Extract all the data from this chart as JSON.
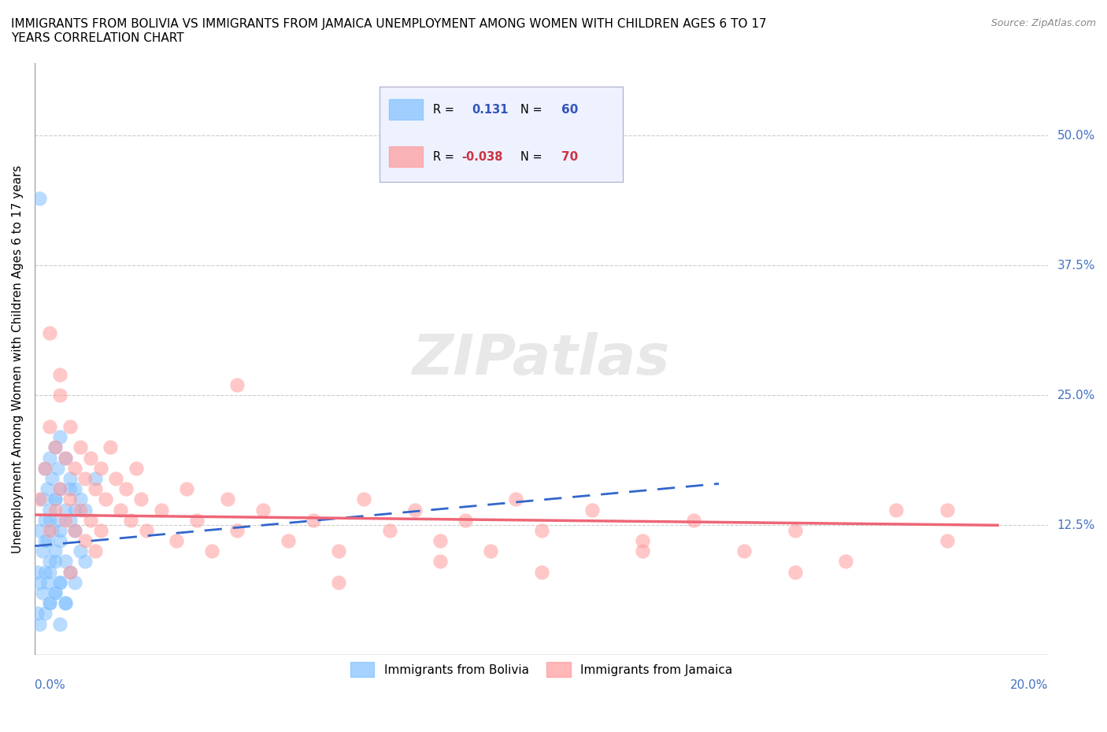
{
  "title": "IMMIGRANTS FROM BOLIVIA VS IMMIGRANTS FROM JAMAICA UNEMPLOYMENT AMONG WOMEN WITH CHILDREN AGES 6 TO 17\nYEARS CORRELATION CHART",
  "source": "Source: ZipAtlas.com",
  "ylabel": "Unemployment Among Women with Children Ages 6 to 17 years",
  "ytick_labels": [
    "50.0%",
    "37.5%",
    "25.0%",
    "12.5%"
  ],
  "ytick_values": [
    0.5,
    0.375,
    0.25,
    0.125
  ],
  "xlim": [
    0.0,
    0.2
  ],
  "ylim": [
    0.0,
    0.57
  ],
  "bolivia_color": "#7fbfff",
  "jamaica_color": "#ff9999",
  "bolivia_line_color": "#3366cc",
  "jamaica_line_color": "#ee6677",
  "bolivia_R": 0.131,
  "bolivia_N": 60,
  "jamaica_R": -0.038,
  "jamaica_N": 70,
  "legend_bottom_bolivia": "Immigrants from Bolivia",
  "legend_bottom_jamaica": "Immigrants from Jamaica",
  "bolivia_trend_x": [
    0.0,
    0.135
  ],
  "bolivia_trend_y": [
    0.105,
    0.165
  ],
  "jamaica_trend_x": [
    0.0,
    0.19
  ],
  "jamaica_trend_y": [
    0.135,
    0.125
  ],
  "watermark": "ZIPatlas",
  "bolivia_scatter_x": [
    0.0005,
    0.001,
    0.001,
    0.0015,
    0.0015,
    0.002,
    0.002,
    0.002,
    0.0025,
    0.0025,
    0.003,
    0.003,
    0.003,
    0.003,
    0.0035,
    0.0035,
    0.004,
    0.004,
    0.004,
    0.004,
    0.0045,
    0.0045,
    0.005,
    0.005,
    0.005,
    0.005,
    0.006,
    0.006,
    0.006,
    0.006,
    0.007,
    0.007,
    0.007,
    0.008,
    0.008,
    0.008,
    0.009,
    0.009,
    0.01,
    0.01,
    0.0005,
    0.001,
    0.0015,
    0.002,
    0.0025,
    0.003,
    0.003,
    0.004,
    0.004,
    0.005,
    0.005,
    0.006,
    0.001,
    0.002,
    0.003,
    0.004,
    0.005,
    0.007,
    0.008,
    0.012
  ],
  "bolivia_scatter_y": [
    0.08,
    0.12,
    0.07,
    0.15,
    0.1,
    0.18,
    0.13,
    0.08,
    0.16,
    0.11,
    0.19,
    0.14,
    0.09,
    0.05,
    0.17,
    0.12,
    0.2,
    0.15,
    0.1,
    0.06,
    0.18,
    0.13,
    0.21,
    0.16,
    0.11,
    0.07,
    0.19,
    0.14,
    0.09,
    0.05,
    0.17,
    0.13,
    0.08,
    0.16,
    0.12,
    0.07,
    0.15,
    0.1,
    0.14,
    0.09,
    0.04,
    0.03,
    0.06,
    0.04,
    0.07,
    0.05,
    0.08,
    0.06,
    0.09,
    0.07,
    0.03,
    0.05,
    0.44,
    0.11,
    0.13,
    0.15,
    0.12,
    0.16,
    0.14,
    0.17
  ],
  "jamaica_scatter_x": [
    0.001,
    0.002,
    0.003,
    0.003,
    0.004,
    0.004,
    0.005,
    0.005,
    0.006,
    0.006,
    0.007,
    0.007,
    0.008,
    0.008,
    0.009,
    0.009,
    0.01,
    0.01,
    0.011,
    0.011,
    0.012,
    0.012,
    0.013,
    0.013,
    0.014,
    0.015,
    0.016,
    0.017,
    0.018,
    0.019,
    0.02,
    0.021,
    0.022,
    0.025,
    0.028,
    0.03,
    0.032,
    0.035,
    0.038,
    0.04,
    0.045,
    0.05,
    0.055,
    0.06,
    0.065,
    0.07,
    0.075,
    0.08,
    0.085,
    0.09,
    0.095,
    0.1,
    0.11,
    0.12,
    0.13,
    0.14,
    0.15,
    0.16,
    0.17,
    0.18,
    0.003,
    0.005,
    0.007,
    0.04,
    0.06,
    0.08,
    0.1,
    0.12,
    0.15,
    0.18
  ],
  "jamaica_scatter_y": [
    0.15,
    0.18,
    0.22,
    0.12,
    0.2,
    0.14,
    0.25,
    0.16,
    0.19,
    0.13,
    0.22,
    0.15,
    0.18,
    0.12,
    0.2,
    0.14,
    0.17,
    0.11,
    0.19,
    0.13,
    0.16,
    0.1,
    0.18,
    0.12,
    0.15,
    0.2,
    0.17,
    0.14,
    0.16,
    0.13,
    0.18,
    0.15,
    0.12,
    0.14,
    0.11,
    0.16,
    0.13,
    0.1,
    0.15,
    0.12,
    0.14,
    0.11,
    0.13,
    0.1,
    0.15,
    0.12,
    0.14,
    0.11,
    0.13,
    0.1,
    0.15,
    0.12,
    0.14,
    0.11,
    0.13,
    0.1,
    0.12,
    0.09,
    0.14,
    0.11,
    0.31,
    0.27,
    0.08,
    0.26,
    0.07,
    0.09,
    0.08,
    0.1,
    0.08,
    0.14
  ]
}
